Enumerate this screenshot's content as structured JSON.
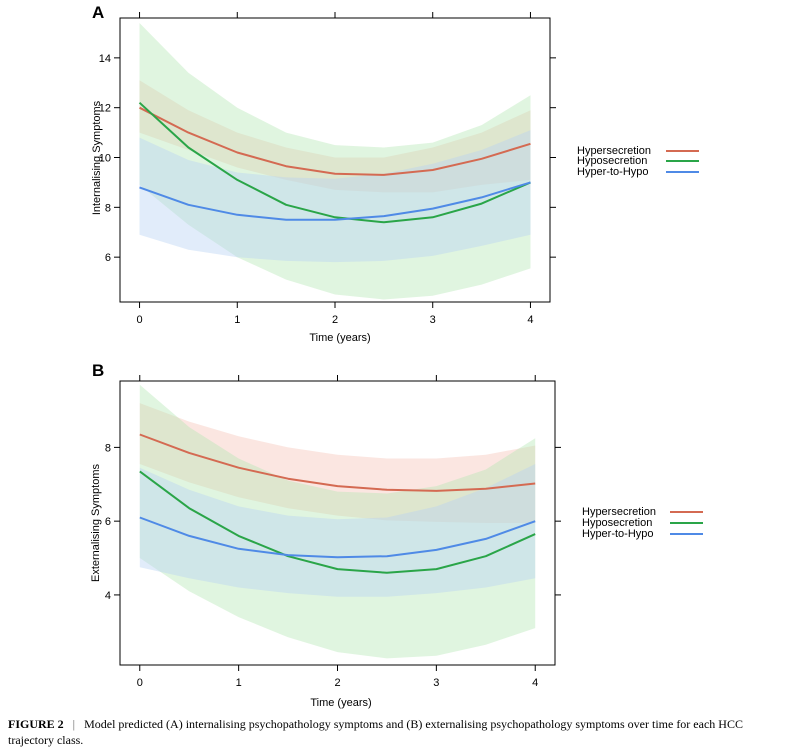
{
  "figure_label": "FIGURE 2",
  "caption_separator": "|",
  "caption_text": "Model predicted (A) internalising psychopathology symptoms and (B) externalising psychopathology symptoms over time for each HCC trajectory class.",
  "chart_data": [
    {
      "type": "line",
      "panel": "A",
      "title": "",
      "xlabel": "Time (years)",
      "ylabel": "Internalising Symptoms",
      "xlim": [
        -0.2,
        4.2
      ],
      "ylim": [
        4.2,
        15.6
      ],
      "xticks": [
        0,
        1,
        2,
        3,
        4
      ],
      "yticks": [
        6,
        8,
        10,
        12,
        14
      ],
      "legend_position": "right",
      "series": [
        {
          "name": "Hypersecretion",
          "color": "#d46a52",
          "band_color": "#f5c4b8",
          "x": [
            0,
            0.5,
            1,
            1.5,
            2,
            2.5,
            3,
            3.5,
            4
          ],
          "y": [
            12.0,
            11.0,
            10.2,
            9.65,
            9.35,
            9.3,
            9.5,
            9.95,
            10.55
          ],
          "lower": [
            11.0,
            10.3,
            9.6,
            9.1,
            8.7,
            8.6,
            8.6,
            8.9,
            9.1
          ],
          "upper": [
            13.1,
            11.9,
            11.0,
            10.4,
            10.0,
            10.0,
            10.4,
            11.0,
            11.9
          ]
        },
        {
          "name": "Hyposecretion",
          "color": "#2aa548",
          "band_color": "#b4e6b6",
          "x": [
            0,
            0.5,
            1,
            1.5,
            2,
            2.5,
            3,
            3.5,
            4
          ],
          "y": [
            12.2,
            10.4,
            9.1,
            8.1,
            7.6,
            7.4,
            7.6,
            8.15,
            9.0
          ],
          "lower": [
            8.9,
            7.3,
            6.0,
            5.1,
            4.5,
            4.3,
            4.45,
            4.9,
            5.55
          ],
          "upper": [
            15.4,
            13.4,
            12.0,
            11.0,
            10.5,
            10.4,
            10.6,
            11.3,
            12.5
          ]
        },
        {
          "name": "Hyper-to-Hypo",
          "color": "#4f8ae6",
          "band_color": "#b8d2f4",
          "x": [
            0,
            0.5,
            1,
            1.5,
            2,
            2.5,
            3,
            3.5,
            4
          ],
          "y": [
            8.8,
            8.1,
            7.7,
            7.5,
            7.5,
            7.65,
            7.95,
            8.4,
            9.0
          ],
          "lower": [
            6.9,
            6.3,
            6.0,
            5.85,
            5.8,
            5.85,
            6.05,
            6.45,
            6.9
          ],
          "upper": [
            10.8,
            9.9,
            9.4,
            9.2,
            9.15,
            9.35,
            9.75,
            10.3,
            11.1
          ]
        }
      ]
    },
    {
      "type": "line",
      "panel": "B",
      "title": "",
      "xlabel": "Time (years)",
      "ylabel": "Externalising Symptoms",
      "xlim": [
        -0.2,
        4.2
      ],
      "ylim": [
        2.1,
        9.8
      ],
      "xticks": [
        0,
        1,
        2,
        3,
        4
      ],
      "yticks": [
        4,
        6,
        8
      ],
      "legend_position": "right",
      "series": [
        {
          "name": "Hypersecretion",
          "color": "#d46a52",
          "band_color": "#f5c4b8",
          "x": [
            0,
            0.5,
            1,
            1.5,
            2,
            2.5,
            3,
            3.5,
            4
          ],
          "y": [
            8.35,
            7.85,
            7.45,
            7.15,
            6.95,
            6.85,
            6.82,
            6.88,
            7.02
          ],
          "lower": [
            7.55,
            7.05,
            6.65,
            6.35,
            6.15,
            6.02,
            5.98,
            5.95,
            5.95
          ],
          "upper": [
            9.2,
            8.7,
            8.3,
            8.0,
            7.8,
            7.7,
            7.7,
            7.8,
            8.05
          ]
        },
        {
          "name": "Hyposecretion",
          "color": "#2aa548",
          "band_color": "#b4e6b6",
          "x": [
            0,
            0.5,
            1,
            1.5,
            2,
            2.5,
            3,
            3.5,
            4
          ],
          "y": [
            7.35,
            6.35,
            5.6,
            5.05,
            4.7,
            4.6,
            4.7,
            5.05,
            5.65
          ],
          "lower": [
            5.0,
            4.1,
            3.4,
            2.85,
            2.45,
            2.28,
            2.35,
            2.65,
            3.1
          ],
          "upper": [
            9.7,
            8.55,
            7.7,
            7.1,
            6.8,
            6.75,
            6.95,
            7.4,
            8.25
          ]
        },
        {
          "name": "Hyper-to-Hypo",
          "color": "#4f8ae6",
          "band_color": "#b8d2f4",
          "x": [
            0,
            0.5,
            1,
            1.5,
            2,
            2.5,
            3,
            3.5,
            4
          ],
          "y": [
            6.1,
            5.6,
            5.25,
            5.08,
            5.02,
            5.05,
            5.22,
            5.52,
            6.0
          ],
          "lower": [
            4.75,
            4.45,
            4.2,
            4.05,
            3.95,
            3.95,
            4.05,
            4.2,
            4.45
          ],
          "upper": [
            7.45,
            6.85,
            6.4,
            6.15,
            6.05,
            6.1,
            6.4,
            6.9,
            7.55
          ]
        }
      ]
    }
  ]
}
